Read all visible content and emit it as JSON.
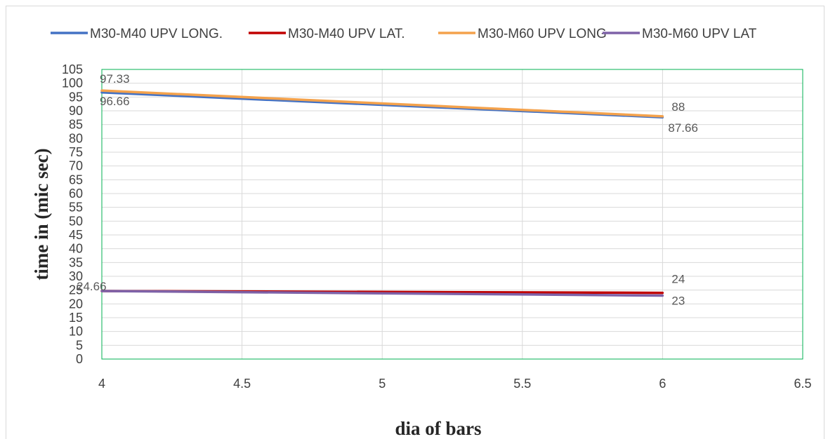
{
  "chart_data": {
    "type": "line",
    "xlabel": "dia of bars",
    "ylabel": "time in (mic sec)",
    "xlim": [
      4,
      6.5
    ],
    "ylim": [
      0,
      105
    ],
    "x_ticks": [
      4,
      4.5,
      5,
      5.5,
      6,
      6.5
    ],
    "y_ticks": [
      0,
      5,
      10,
      15,
      20,
      25,
      30,
      35,
      40,
      45,
      50,
      55,
      60,
      65,
      70,
      75,
      80,
      85,
      90,
      95,
      100,
      105
    ],
    "grid": true,
    "legend_position": "top",
    "series": [
      {
        "name": "M30-M40 UPV LONG.",
        "color": "#4472c4",
        "x": [
          4,
          6
        ],
        "y": [
          96.66,
          87.66
        ],
        "labels": [
          "96.66",
          "87.66"
        ]
      },
      {
        "name": "M30-M40 UPV LAT.",
        "color": "#c00000",
        "x": [
          4,
          6
        ],
        "y": [
          24.66,
          24
        ],
        "labels": [
          "24.66",
          "24"
        ]
      },
      {
        "name": "M30-M60 UPV LONG",
        "color": "#f4a24c",
        "x": [
          4,
          6
        ],
        "y": [
          97.33,
          88
        ],
        "labels": [
          "97.33",
          "88"
        ]
      },
      {
        "name": "M30-M60 UPV LAT",
        "color": "#7e62a8",
        "x": [
          4,
          6
        ],
        "y": [
          24.66,
          23
        ],
        "labels": [
          "",
          "23"
        ]
      }
    ]
  }
}
